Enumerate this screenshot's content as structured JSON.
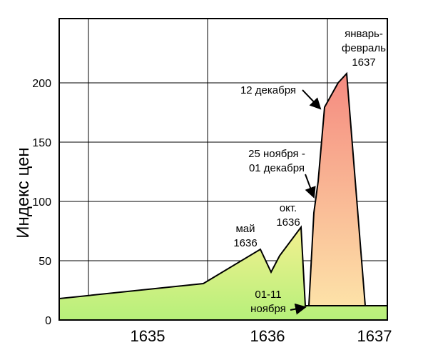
{
  "chart_data": {
    "type": "area",
    "title": "",
    "xlabel": "",
    "ylabel": "Индекс цен",
    "xlim": [
      1634.25,
      1637.0
    ],
    "ylim": [
      0,
      250
    ],
    "xticks": [
      1635,
      1636,
      1637
    ],
    "xtick_labels": [
      "1635",
      "1636",
      "1637"
    ],
    "yticks": [
      0,
      50,
      100,
      150,
      200
    ],
    "ytick_labels": [
      "0",
      "50",
      "100",
      "150",
      "200"
    ],
    "grid": true,
    "series": [
      {
        "x": [
          1634.25,
          1635.75,
          1636.42,
          1636.52,
          1636.67,
          1636.95,
          1637.0
        ],
        "y": [
          19,
          31,
          59,
          41,
          58,
          78,
          13
        ],
        "fill": "#c4f48a"
      },
      {
        "x": [
          1636.72,
          1636.79,
          1636.88,
          1636.96,
          1637.01,
          1637.02,
          1637.18,
          1637.5
        ],
        "y": [
          13,
          13,
          91,
          116,
          178,
          200,
          208,
          12
        ],
        "fill": "#f4b9a0"
      }
    ],
    "annotations": [
      {
        "lines": [
          "январь-",
          "февраль",
          "1637"
        ],
        "x": 1637.1,
        "y": 208
      },
      {
        "lines": [
          "12 декабря"
        ],
        "x": 1636.99,
        "y": 178
      },
      {
        "lines": [
          "25 ноября -",
          "01 декабря"
        ],
        "x": 1636.88,
        "y": 112
      },
      {
        "lines": [
          "окт.",
          "1636"
        ],
        "x": 1636.7,
        "y": 88
      },
      {
        "lines": [
          "май",
          "1636"
        ],
        "x": 1636.3,
        "y": 63
      },
      {
        "lines": [
          "01-11",
          "ноября"
        ],
        "x": 1636.49,
        "y": 6
      }
    ]
  }
}
